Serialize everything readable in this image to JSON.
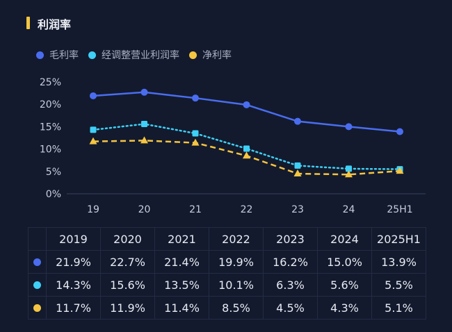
{
  "title": "利润率",
  "colors": {
    "accent": "#f5c542",
    "gross": "#4a6df0",
    "adjusted": "#3fd0f7",
    "net": "#f5c542"
  },
  "chart_data": {
    "type": "line",
    "categories": [
      "19",
      "20",
      "21",
      "22",
      "23",
      "24",
      "25H1"
    ],
    "yticks": [
      "0%",
      "5%",
      "10%",
      "15%",
      "20%",
      "25%"
    ],
    "ylim": [
      0,
      25
    ],
    "grid": false,
    "legend": "top-left",
    "series": [
      {
        "name": "毛利率",
        "values": [
          21.9,
          22.7,
          21.4,
          19.9,
          16.2,
          15.0,
          13.9
        ],
        "style": "solid",
        "marker": "circle"
      },
      {
        "name": "经调整营业利润率",
        "values": [
          14.3,
          15.6,
          13.5,
          10.1,
          6.3,
          5.6,
          5.5
        ],
        "style": "dotted",
        "marker": "square"
      },
      {
        "name": "净利率",
        "values": [
          11.7,
          11.9,
          11.4,
          8.5,
          4.5,
          4.3,
          5.1
        ],
        "style": "dashed",
        "marker": "triangle"
      }
    ]
  },
  "table": {
    "headers": [
      "2019",
      "2020",
      "2021",
      "2022",
      "2023",
      "2024",
      "2025H1"
    ],
    "rows": [
      [
        "21.9%",
        "22.7%",
        "21.4%",
        "19.9%",
        "16.2%",
        "15.0%",
        "13.9%"
      ],
      [
        "14.3%",
        "15.6%",
        "13.5%",
        "10.1%",
        "6.3%",
        "5.6%",
        "5.5%"
      ],
      [
        "11.7%",
        "11.9%",
        "11.4%",
        "8.5%",
        "4.5%",
        "4.3%",
        "5.1%"
      ]
    ]
  }
}
